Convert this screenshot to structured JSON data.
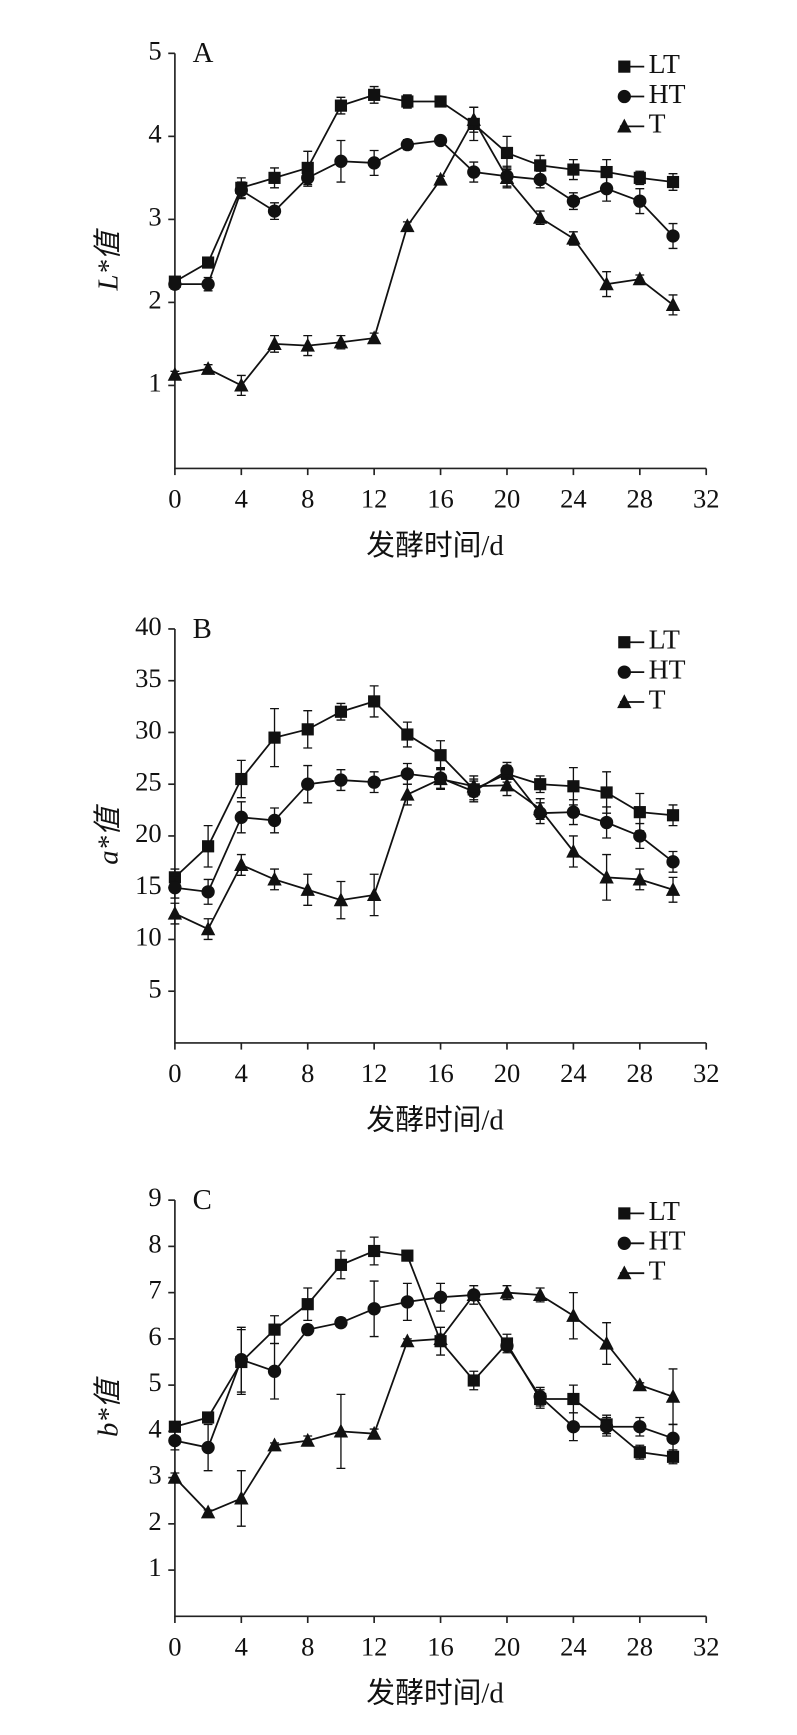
{
  "chart_data": [
    {
      "type": "line",
      "panel": "A",
      "x_label": "发酵时间/d",
      "y_label": "L*值",
      "x": [
        0,
        2,
        4,
        6,
        8,
        10,
        12,
        14,
        16,
        18,
        20,
        22,
        24,
        26,
        28,
        30
      ],
      "xlim": [
        0,
        32
      ],
      "xticks": [
        0,
        4,
        8,
        12,
        16,
        20,
        24,
        28,
        32
      ],
      "ylim": [
        0,
        5
      ],
      "yticks": [
        1,
        2,
        3,
        4,
        5
      ],
      "legend": "upper right",
      "series": [
        {
          "name": "LT",
          "color": "#111111",
          "marker": "square",
          "values": [
            2.25,
            2.48,
            3.38,
            3.5,
            3.62,
            4.37,
            4.5,
            4.42,
            4.42,
            4.15,
            3.8,
            3.65,
            3.6,
            3.57,
            3.5,
            3.45
          ],
          "errors": [
            0.05,
            0.06,
            0.12,
            0.12,
            0.2,
            0.1,
            0.1,
            0.08,
            0.04,
            0.2,
            0.2,
            0.12,
            0.12,
            0.15,
            0.08,
            0.1
          ]
        },
        {
          "name": "HT",
          "color": "#111111",
          "marker": "circle",
          "values": [
            2.22,
            2.22,
            3.35,
            3.1,
            3.5,
            3.7,
            3.68,
            3.9,
            3.95,
            3.57,
            3.52,
            3.48,
            3.22,
            3.37,
            3.22,
            2.8
          ],
          "errors": [
            0.06,
            0.08,
            0.1,
            0.1,
            0.1,
            0.25,
            0.15,
            0.06,
            0.04,
            0.12,
            0.12,
            0.1,
            0.1,
            0.15,
            0.15,
            0.15
          ]
        },
        {
          "name": "T",
          "color": "#111111",
          "marker": "triangle",
          "values": [
            1.13,
            1.2,
            1.0,
            1.5,
            1.48,
            1.52,
            1.57,
            2.92,
            3.48,
            4.2,
            3.5,
            3.02,
            2.77,
            2.22,
            2.28,
            1.97
          ],
          "errors": [
            0.04,
            0.05,
            0.12,
            0.1,
            0.12,
            0.08,
            0.06,
            0.05,
            0.04,
            0.15,
            0.12,
            0.08,
            0.08,
            0.15,
            0.05,
            0.12
          ]
        }
      ]
    },
    {
      "type": "line",
      "panel": "B",
      "x_label": "发酵时间/d",
      "y_label": "a*值",
      "x": [
        0,
        2,
        4,
        6,
        8,
        10,
        12,
        14,
        16,
        18,
        20,
        22,
        24,
        26,
        28,
        30
      ],
      "xlim": [
        0,
        32
      ],
      "xticks": [
        0,
        4,
        8,
        12,
        16,
        20,
        24,
        28,
        32
      ],
      "ylim": [
        0,
        40
      ],
      "yticks": [
        5,
        10,
        15,
        20,
        25,
        30,
        35,
        40
      ],
      "legend": "upper right",
      "series": [
        {
          "name": "LT",
          "color": "#111111",
          "marker": "square",
          "values": [
            16,
            19,
            25.5,
            29.5,
            30.3,
            32,
            33,
            29.8,
            27.8,
            24.5,
            26,
            25,
            24.8,
            24.2,
            22.3,
            22
          ],
          "errors": [
            0.8,
            2,
            1.8,
            2.8,
            1.8,
            0.8,
            1.5,
            1.2,
            1.4,
            1,
            0.8,
            0.8,
            1.8,
            2,
            1.8,
            1
          ]
        },
        {
          "name": "HT",
          "color": "#111111",
          "marker": "circle",
          "values": [
            15,
            14.6,
            21.8,
            21.5,
            25,
            25.4,
            25.2,
            26,
            25.6,
            24.3,
            26.3,
            22.2,
            22.3,
            21.3,
            20,
            17.5
          ],
          "errors": [
            1,
            1.2,
            1.5,
            1.2,
            1.8,
            1,
            1,
            1,
            1,
            1,
            0.8,
            1,
            1.2,
            1.5,
            1.2,
            1
          ]
        },
        {
          "name": "T",
          "color": "#111111",
          "marker": "triangle",
          "values": [
            12.5,
            11,
            17.2,
            15.8,
            14.8,
            13.8,
            14.3,
            24,
            25.5,
            24.8,
            24.9,
            22.6,
            18.5,
            16,
            15.8,
            14.8
          ],
          "errors": [
            1,
            1,
            1,
            1,
            1.5,
            1.8,
            2,
            1,
            1,
            1,
            1,
            1,
            1.5,
            2.2,
            1,
            1.2
          ]
        }
      ]
    },
    {
      "type": "line",
      "panel": "C",
      "x_label": "发酵时间/d",
      "y_label": "b*值",
      "x": [
        0,
        2,
        4,
        6,
        8,
        10,
        12,
        14,
        16,
        18,
        20,
        22,
        24,
        26,
        28,
        30
      ],
      "xlim": [
        0,
        32
      ],
      "xticks": [
        0,
        4,
        8,
        12,
        16,
        20,
        24,
        28,
        32
      ],
      "ylim": [
        0,
        9
      ],
      "yticks": [
        1,
        2,
        3,
        4,
        5,
        6,
        7,
        8,
        9
      ],
      "legend": "upper right",
      "series": [
        {
          "name": "LT",
          "color": "#111111",
          "marker": "square",
          "values": [
            4.1,
            4.3,
            5.5,
            6.2,
            6.75,
            7.6,
            7.9,
            7.8,
            5.95,
            5.1,
            5.9,
            4.7,
            4.7,
            4.15,
            3.55,
            3.45
          ],
          "errors": [
            0.05,
            0.05,
            0.7,
            0.3,
            0.35,
            0.3,
            0.3,
            0.05,
            0.3,
            0.2,
            0.2,
            0.2,
            0.3,
            0.2,
            0.15,
            0.15
          ]
        },
        {
          "name": "HT",
          "color": "#111111",
          "marker": "circle",
          "values": [
            3.8,
            3.65,
            5.55,
            5.3,
            6.2,
            6.35,
            6.65,
            6.8,
            6.9,
            6.95,
            5.85,
            4.75,
            4.1,
            4.1,
            4.1,
            3.85
          ],
          "errors": [
            0.2,
            0.5,
            0.7,
            0.6,
            0.1,
            0.1,
            0.6,
            0.4,
            0.3,
            0.2,
            0.1,
            0.2,
            0.3,
            0.2,
            0.2,
            0.3
          ]
        },
        {
          "name": "T",
          "color": "#111111",
          "marker": "triangle",
          "values": [
            3.0,
            2.25,
            2.55,
            3.7,
            3.8,
            4.0,
            3.95,
            5.95,
            6.0,
            6.95,
            7.0,
            6.95,
            6.5,
            5.9,
            5.0,
            4.75
          ],
          "errors": [
            0.1,
            0.05,
            0.6,
            0.05,
            0.1,
            0.8,
            0.1,
            0.05,
            0.1,
            0.1,
            0.15,
            0.15,
            0.5,
            0.45,
            0.05,
            0.6
          ]
        }
      ]
    }
  ]
}
